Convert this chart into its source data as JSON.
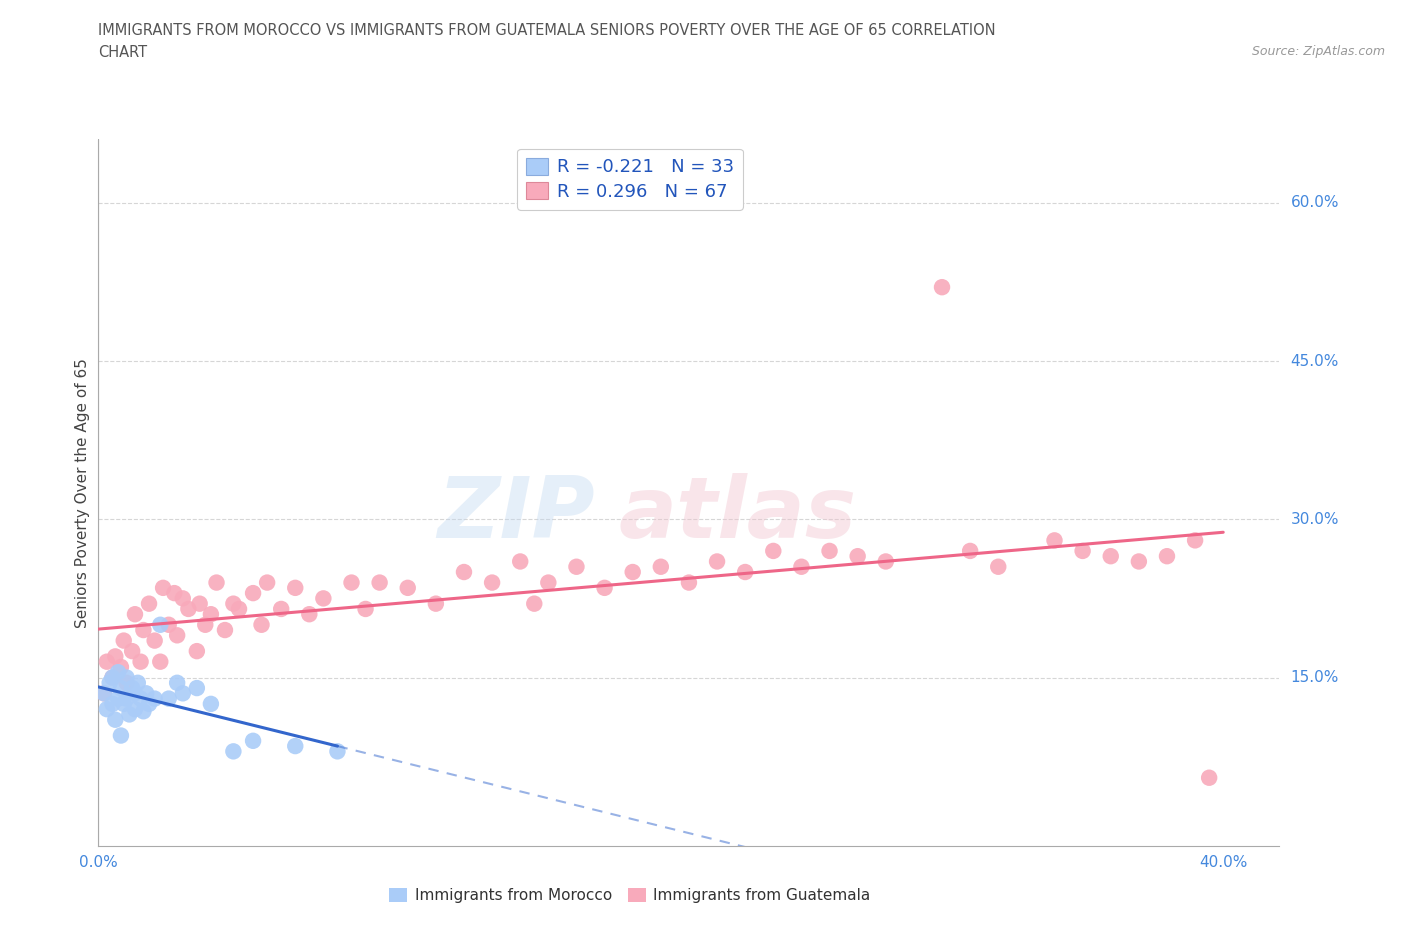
{
  "title_line1": "IMMIGRANTS FROM MOROCCO VS IMMIGRANTS FROM GUATEMALA SENIORS POVERTY OVER THE AGE OF 65 CORRELATION",
  "title_line2": "CHART",
  "source": "Source: ZipAtlas.com",
  "ylabel": "Seniors Poverty Over the Age of 65",
  "morocco_R": -0.221,
  "morocco_N": 33,
  "guatemala_R": 0.296,
  "guatemala_N": 67,
  "morocco_color": "#aaccf8",
  "guatemala_color": "#f8aabb",
  "morocco_line_color": "#3366cc",
  "guatemala_line_color": "#ee6688",
  "background_color": "#ffffff",
  "grid_color": "#cccccc",
  "right_label_color": "#4488dd",
  "title_color": "#555555",
  "source_color": "#999999",
  "legend_label_color": "#2255bb",
  "bottom_legend_color": "#333333",
  "xlim_min": 0.0,
  "xlim_max": 0.42,
  "ylim_min": -0.01,
  "ylim_max": 0.66,
  "ytick_vals": [
    0.15,
    0.3,
    0.45,
    0.6
  ],
  "ytick_labels": [
    "15.0%",
    "30.0%",
    "45.0%",
    "60.0%"
  ],
  "xtick_vals": [
    0.0,
    0.1,
    0.2,
    0.3,
    0.4
  ],
  "xtick_labels": [
    "0.0%",
    "",
    "",
    "",
    "40.0%"
  ],
  "morocco_x": [
    0.002,
    0.003,
    0.004,
    0.005,
    0.005,
    0.006,
    0.007,
    0.007,
    0.008,
    0.008,
    0.009,
    0.01,
    0.01,
    0.011,
    0.012,
    0.013,
    0.013,
    0.014,
    0.015,
    0.016,
    0.017,
    0.018,
    0.02,
    0.022,
    0.025,
    0.028,
    0.03,
    0.035,
    0.04,
    0.048,
    0.055,
    0.07,
    0.085
  ],
  "morocco_y": [
    0.135,
    0.12,
    0.145,
    0.125,
    0.15,
    0.11,
    0.13,
    0.155,
    0.095,
    0.14,
    0.125,
    0.13,
    0.15,
    0.115,
    0.14,
    0.135,
    0.12,
    0.145,
    0.13,
    0.118,
    0.135,
    0.125,
    0.13,
    0.2,
    0.13,
    0.145,
    0.135,
    0.14,
    0.125,
    0.08,
    0.09,
    0.085,
    0.08
  ],
  "guatemala_x": [
    0.002,
    0.003,
    0.005,
    0.006,
    0.008,
    0.009,
    0.01,
    0.012,
    0.013,
    0.015,
    0.016,
    0.018,
    0.02,
    0.022,
    0.023,
    0.025,
    0.027,
    0.028,
    0.03,
    0.032,
    0.035,
    0.036,
    0.038,
    0.04,
    0.042,
    0.045,
    0.048,
    0.05,
    0.055,
    0.058,
    0.06,
    0.065,
    0.07,
    0.075,
    0.08,
    0.09,
    0.095,
    0.1,
    0.11,
    0.12,
    0.13,
    0.14,
    0.15,
    0.155,
    0.16,
    0.17,
    0.18,
    0.19,
    0.2,
    0.21,
    0.22,
    0.23,
    0.24,
    0.25,
    0.26,
    0.27,
    0.28,
    0.3,
    0.31,
    0.32,
    0.34,
    0.35,
    0.36,
    0.37,
    0.38,
    0.39,
    0.395
  ],
  "guatemala_y": [
    0.135,
    0.165,
    0.15,
    0.17,
    0.16,
    0.185,
    0.145,
    0.175,
    0.21,
    0.165,
    0.195,
    0.22,
    0.185,
    0.165,
    0.235,
    0.2,
    0.23,
    0.19,
    0.225,
    0.215,
    0.175,
    0.22,
    0.2,
    0.21,
    0.24,
    0.195,
    0.22,
    0.215,
    0.23,
    0.2,
    0.24,
    0.215,
    0.235,
    0.21,
    0.225,
    0.24,
    0.215,
    0.24,
    0.235,
    0.22,
    0.25,
    0.24,
    0.26,
    0.22,
    0.24,
    0.255,
    0.235,
    0.25,
    0.255,
    0.24,
    0.26,
    0.25,
    0.27,
    0.255,
    0.27,
    0.265,
    0.26,
    0.52,
    0.27,
    0.255,
    0.28,
    0.27,
    0.265,
    0.26,
    0.265,
    0.28,
    0.055
  ]
}
